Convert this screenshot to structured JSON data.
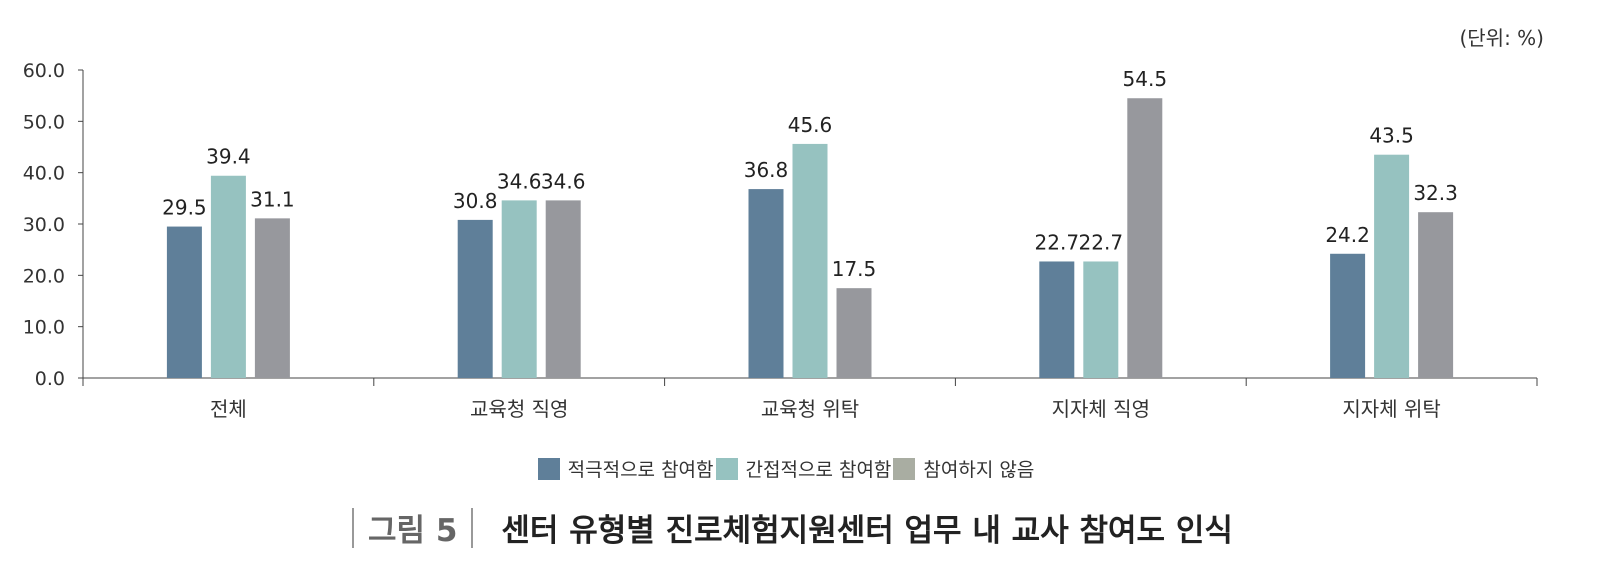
{
  "chart_data": {
    "type": "bar",
    "unit_label": "(단위: %)",
    "categories": [
      "전체",
      "교육청 직영",
      "교육청 위탁",
      "지자체 직영",
      "지자체 위탁"
    ],
    "series": [
      {
        "name": "적극적으로 참여함",
        "color": "#5f7f99",
        "legend_color": "#5f7f99",
        "values": [
          29.5,
          30.8,
          36.8,
          22.7,
          24.2
        ]
      },
      {
        "name": "간접적으로 참여함",
        "color": "#96c2c0",
        "legend_color": "#96c2c0",
        "values": [
          39.4,
          34.6,
          45.6,
          22.7,
          43.5
        ]
      },
      {
        "name": "참여하지 않음",
        "color": "#97989d",
        "legend_color": "#a9ada2",
        "values": [
          31.1,
          34.6,
          17.5,
          54.5,
          32.3
        ]
      }
    ],
    "ylim": [
      0,
      60
    ],
    "yticks": [
      "0.0",
      "10.0",
      "20.0",
      "30.0",
      "40.0",
      "50.0",
      "60.0"
    ],
    "grid": false,
    "legend": "bottom"
  },
  "caption": {
    "label": "그림 5",
    "title": "센터 유형별 진로체험지원센터 업무 내 교사 참여도 인식"
  }
}
